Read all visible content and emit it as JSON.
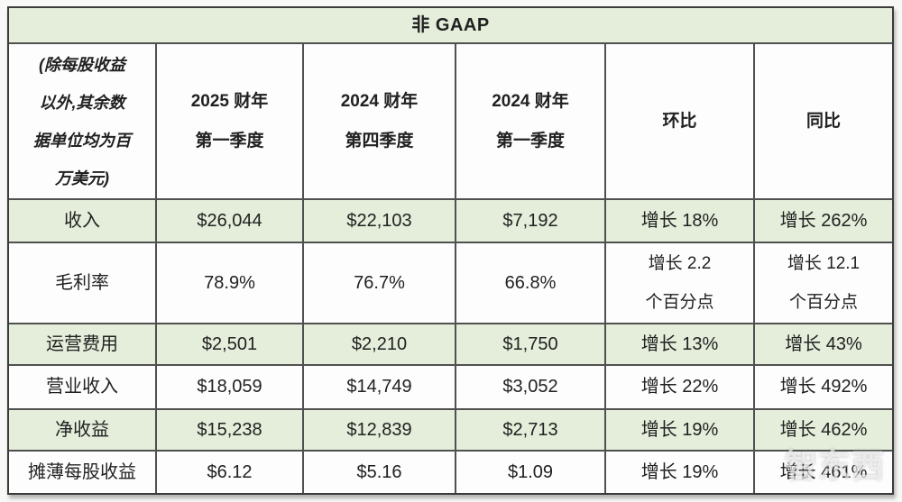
{
  "colors": {
    "band_green": "#e4eeda",
    "cell_white": "#fdfdfd",
    "outer_border": "#3b3b3b",
    "grid_line": "#505050",
    "text": "#212121",
    "watermark": "#ffffff"
  },
  "watermark": {
    "text": "智东西"
  },
  "chart_data": {
    "type": "table",
    "title": "非 GAAP",
    "corner_note": {
      "full_text": "(除每股收益以外,其余数据单位均为百万美元)",
      "lines": [
        "(除每股收益",
        "以外,其余数",
        "据单位均为百",
        "万美元)"
      ]
    },
    "columns": [
      {
        "line1": "2025 财年",
        "line2": "第一季度"
      },
      {
        "line1": "2024 财年",
        "line2": "第四季度"
      },
      {
        "line1": "2024 财年",
        "line2": "第一季度"
      },
      {
        "label": "环比"
      },
      {
        "label": "同比"
      }
    ],
    "rows": [
      {
        "label": "收入",
        "shaded": true,
        "cells": [
          "$26,044",
          "$22,103",
          "$7,192",
          "增长 18%",
          "增长 262%"
        ]
      },
      {
        "label": "毛利率",
        "shaded": false,
        "cells": [
          "78.9%",
          "76.7%",
          "66.8%",
          [
            "增长 2.2",
            "个百分点"
          ],
          [
            "增长 12.1",
            "个百分点"
          ]
        ]
      },
      {
        "label": "运营费用",
        "shaded": true,
        "cells": [
          "$2,501",
          "$2,210",
          "$1,750",
          "增长 13%",
          "增长 43%"
        ]
      },
      {
        "label": "营业收入",
        "shaded": false,
        "cells": [
          "$18,059",
          "$14,749",
          "$3,052",
          "增长 22%",
          "增长 492%"
        ]
      },
      {
        "label": "净收益",
        "shaded": true,
        "cells": [
          "$15,238",
          "$12,839",
          "$2,713",
          "增长 19%",
          "增长 462%"
        ]
      },
      {
        "label": "摊薄每股收益",
        "shaded": false,
        "cells": [
          "$6.12",
          "$5.16",
          "$1.09",
          "增长 19%",
          "增长 461%"
        ]
      }
    ]
  }
}
